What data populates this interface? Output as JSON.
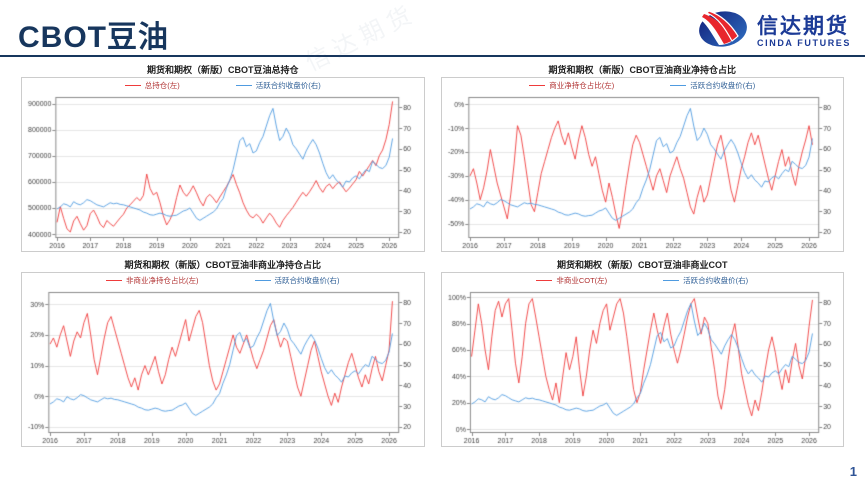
{
  "page": {
    "title": "CBOT豆油",
    "page_number": "1",
    "watermark": "信达期货"
  },
  "logo": {
    "name_cn": "信达期货",
    "name_en": "CINDA FUTURES"
  },
  "colors": {
    "accent_navy": "#17365d",
    "brand_blue": "#1b3a96",
    "series_red": "#ef3b3b",
    "series_blue": "#4f9be0"
  },
  "price_series": [
    31,
    32,
    33.5,
    33,
    32,
    34.5,
    33.5,
    33,
    34,
    35.5,
    35,
    34,
    33,
    32.5,
    32,
    33,
    34,
    33.5,
    33.8,
    33.2,
    33,
    32.5,
    32,
    31.5,
    31,
    30.5,
    29.5,
    29,
    28.2,
    28,
    28.5,
    29,
    28.6,
    27.8,
    27.5,
    27.8,
    28,
    29,
    30,
    30.5,
    31.5,
    29,
    26.5,
    25.5,
    26.5,
    27.5,
    28.5,
    29.5,
    31,
    34,
    36,
    41,
    45,
    50,
    57,
    64,
    65.5,
    61,
    62.5,
    58,
    59,
    63,
    66,
    71,
    76,
    79.5,
    71,
    64,
    66,
    70,
    67,
    62,
    60,
    57.5,
    55,
    59,
    62,
    64.5,
    62,
    58,
    53,
    48.5,
    45.5,
    47.5,
    45,
    43.5,
    41.5,
    44.5,
    44,
    46,
    47,
    45.5,
    48,
    50,
    49,
    54,
    52.5,
    51,
    50.5,
    52,
    56,
    65
  ],
  "chart_data": [
    {
      "type": "line",
      "title": "期货和期权（新版）CBOT豆油总持仓",
      "x_start": 2016.0,
      "x_step": 0.1,
      "x_range": [
        2015.95,
        2026.3
      ],
      "x_tick_values": [
        2016,
        2017,
        2018,
        2019,
        2020,
        2021,
        2022,
        2023,
        2024,
        2025,
        2026
      ],
      "x_tick_labels": [
        "2016",
        "2017",
        "2018",
        "2019",
        "2020",
        "2021",
        "2022",
        "2023",
        "2024",
        "2025",
        "2026"
      ],
      "left_axis": {
        "min": 385000,
        "max": 925000,
        "tick_values": [
          400000,
          500000,
          600000,
          700000,
          800000,
          900000
        ],
        "tick_labels": [
          "400000",
          "500000",
          "600000",
          "700000",
          "800000",
          "900000"
        ]
      },
      "right_axis": {
        "min": 17,
        "max": 85,
        "tick_values": [
          20,
          30,
          40,
          50,
          60,
          70,
          80
        ],
        "tick_labels": [
          "20",
          "30",
          "40",
          "50",
          "60",
          "70",
          "80"
        ]
      },
      "series": [
        {
          "label": "总持仓(左)",
          "axis": "left",
          "color": "#ef3b3b",
          "values": [
            445000,
            505000,
            460000,
            420000,
            408000,
            450000,
            468000,
            440000,
            415000,
            432000,
            478000,
            492000,
            468000,
            438000,
            425000,
            452000,
            440000,
            430000,
            446000,
            462000,
            476000,
            500000,
            512000,
            526000,
            540000,
            528000,
            548000,
            630000,
            575000,
            550000,
            560000,
            520000,
            470000,
            435000,
            455000,
            485000,
            540000,
            588000,
            560000,
            545000,
            562000,
            585000,
            558000,
            528000,
            508000,
            540000,
            552000,
            538000,
            520000,
            542000,
            562000,
            582000,
            605000,
            628000,
            590000,
            558000,
            520000,
            492000,
            470000,
            462000,
            476000,
            464000,
            442000,
            462000,
            480000,
            465000,
            442000,
            426000,
            452000,
            470000,
            486000,
            502000,
            522000,
            542000,
            560000,
            545000,
            562000,
            582000,
            605000,
            578000,
            560000,
            582000,
            592000,
            574000,
            590000,
            600000,
            580000,
            562000,
            576000,
            592000,
            608000,
            640000,
            622000,
            642000,
            662000,
            682000,
            662000,
            700000,
            722000,
            762000,
            820000,
            908000
          ]
        },
        {
          "label": "活跃合约收盘价(右)",
          "axis": "right",
          "color": "#4f9be0",
          "values": "price_series"
        }
      ]
    },
    {
      "type": "line",
      "title": "期货和期权（新版）CBOT豆油商业净持仓占比",
      "x_start": 2016.0,
      "x_step": 0.1,
      "x_range": [
        2015.95,
        2026.3
      ],
      "x_tick_values": [
        2016,
        2017,
        2018,
        2019,
        2020,
        2021,
        2022,
        2023,
        2024,
        2025,
        2026
      ],
      "x_tick_labels": [
        "2016",
        "2017",
        "2018",
        "2019",
        "2020",
        "2021",
        "2022",
        "2023",
        "2024",
        "2025",
        "2026"
      ],
      "left_axis": {
        "min": -56,
        "max": 3,
        "tick_values": [
          0,
          -10,
          -20,
          -30,
          -40,
          -50
        ],
        "tick_labels": [
          "0%",
          "-10%",
          "-20%",
          "-30%",
          "-40%",
          "-50%"
        ]
      },
      "right_axis": {
        "min": 17,
        "max": 85,
        "tick_values": [
          20,
          30,
          40,
          50,
          60,
          70,
          80
        ],
        "tick_labels": [
          "20",
          "30",
          "40",
          "50",
          "60",
          "70",
          "80"
        ]
      },
      "series": [
        {
          "label": "商业净持仓占比(左)",
          "axis": "left",
          "color": "#ef3b3b",
          "values": [
            -30,
            -27,
            -33,
            -40,
            -35,
            -28,
            -19,
            -26,
            -33,
            -38,
            -43,
            -48,
            -38,
            -25,
            -9,
            -13,
            -22,
            -32,
            -42,
            -45,
            -37,
            -29,
            -24,
            -19,
            -14,
            -10,
            -7,
            -13,
            -17,
            -12,
            -18,
            -23,
            -15,
            -9,
            -14,
            -21,
            -26,
            -22,
            -29,
            -36,
            -41,
            -33,
            -39,
            -46,
            -52,
            -44,
            -34,
            -25,
            -17,
            -13,
            -16,
            -21,
            -26,
            -31,
            -36,
            -30,
            -27,
            -32,
            -37,
            -30,
            -26,
            -22,
            -27,
            -31,
            -37,
            -43,
            -46,
            -39,
            -34,
            -41,
            -38,
            -31,
            -24,
            -17,
            -13,
            -20,
            -28,
            -36,
            -41,
            -34,
            -27,
            -22,
            -16,
            -12,
            -17,
            -13,
            -19,
            -25,
            -31,
            -36,
            -30,
            -24,
            -19,
            -26,
            -22,
            -29,
            -34,
            -26,
            -20,
            -15,
            -9,
            -17
          ]
        },
        {
          "label": "活跃合约收盘价(右)",
          "axis": "right",
          "color": "#4f9be0",
          "values": "price_series"
        }
      ]
    },
    {
      "type": "line",
      "title": "期货和期权（新版）CBOT豆油非商业净持仓占比",
      "x_start": 2016.0,
      "x_step": 0.1,
      "x_range": [
        2015.95,
        2026.3
      ],
      "x_tick_values": [
        2016,
        2017,
        2018,
        2019,
        2020,
        2021,
        2022,
        2023,
        2024,
        2025,
        2026
      ],
      "x_tick_labels": [
        "2016",
        "2017",
        "2018",
        "2019",
        "2020",
        "2021",
        "2022",
        "2023",
        "2024",
        "2025",
        "2026"
      ],
      "left_axis": {
        "min": -12,
        "max": 34,
        "tick_values": [
          30,
          20,
          10,
          0,
          -10
        ],
        "tick_labels": [
          "30%",
          "20%",
          "10%",
          "0%",
          "-10%"
        ]
      },
      "right_axis": {
        "min": 17,
        "max": 85,
        "tick_values": [
          20,
          30,
          40,
          50,
          60,
          70,
          80
        ],
        "tick_labels": [
          "20",
          "30",
          "40",
          "50",
          "60",
          "70",
          "80"
        ]
      },
      "series": [
        {
          "label": "非商业净持仓占比(左)",
          "axis": "left",
          "color": "#ef3b3b",
          "values": [
            17,
            19,
            16,
            20,
            23,
            18,
            13,
            18,
            21,
            19,
            24,
            27,
            20,
            12,
            7,
            13,
            19,
            24,
            26,
            22,
            18,
            14,
            10,
            6,
            3,
            6,
            2,
            7,
            10,
            7,
            10,
            13,
            8,
            4,
            7,
            12,
            16,
            13,
            17,
            21,
            25,
            18,
            22,
            26,
            28,
            24,
            17,
            10,
            5,
            2,
            4,
            8,
            12,
            16,
            20,
            16,
            14,
            17,
            20,
            16,
            12,
            9,
            12,
            15,
            19,
            23,
            25,
            20,
            16,
            19,
            18,
            13,
            8,
            3,
            0,
            5,
            10,
            15,
            18,
            13,
            8,
            4,
            0,
            -3,
            1,
            -2,
            3,
            7,
            11,
            14,
            10,
            6,
            3,
            7,
            4,
            9,
            13,
            8,
            5,
            10,
            15,
            31
          ]
        },
        {
          "label": "活跃合约收盘价(右)",
          "axis": "right",
          "color": "#4f9be0",
          "values": "price_series"
        }
      ]
    },
    {
      "type": "line",
      "title": "期货和期权（新版）CBOT豆油非商业COT",
      "x_start": 2016.0,
      "x_step": 0.1,
      "x_range": [
        2015.95,
        2026.3
      ],
      "x_tick_values": [
        2016,
        2017,
        2018,
        2019,
        2020,
        2021,
        2022,
        2023,
        2024,
        2025,
        2026
      ],
      "x_tick_labels": [
        "2016",
        "2017",
        "2018",
        "2019",
        "2020",
        "2021",
        "2022",
        "2023",
        "2024",
        "2025",
        "2026"
      ],
      "left_axis": {
        "min": -3,
        "max": 104,
        "tick_values": [
          100,
          80,
          60,
          40,
          20,
          0
        ],
        "tick_labels": [
          "100%",
          "80%",
          "60%",
          "40%",
          "20%",
          "0%"
        ]
      },
      "right_axis": {
        "min": 17,
        "max": 85,
        "tick_values": [
          20,
          30,
          40,
          50,
          60,
          70,
          80
        ],
        "tick_labels": [
          "20",
          "30",
          "40",
          "50",
          "60",
          "70",
          "80"
        ]
      },
      "series": [
        {
          "label": "非商业COT(左)",
          "axis": "left",
          "color": "#ef3b3b",
          "values": [
            55,
            75,
            95,
            80,
            60,
            45,
            70,
            90,
            97,
            85,
            95,
            99,
            75,
            50,
            35,
            55,
            80,
            95,
            99,
            85,
            70,
            55,
            40,
            30,
            22,
            35,
            20,
            40,
            58,
            45,
            55,
            70,
            45,
            25,
            40,
            60,
            75,
            65,
            80,
            90,
            95,
            75,
            85,
            95,
            99,
            88,
            70,
            50,
            30,
            20,
            28,
            45,
            60,
            75,
            88,
            75,
            65,
            78,
            88,
            72,
            60,
            50,
            60,
            72,
            85,
            95,
            99,
            85,
            72,
            85,
            80,
            62,
            45,
            25,
            15,
            30,
            52,
            70,
            80,
            62,
            42,
            30,
            18,
            10,
            22,
            14,
            28,
            45,
            60,
            70,
            58,
            42,
            30,
            45,
            35,
            52,
            65,
            48,
            38,
            55,
            78,
            98
          ]
        },
        {
          "label": "活跃合约收盘价(右)",
          "axis": "right",
          "color": "#4f9be0",
          "values": "price_series"
        }
      ]
    }
  ]
}
